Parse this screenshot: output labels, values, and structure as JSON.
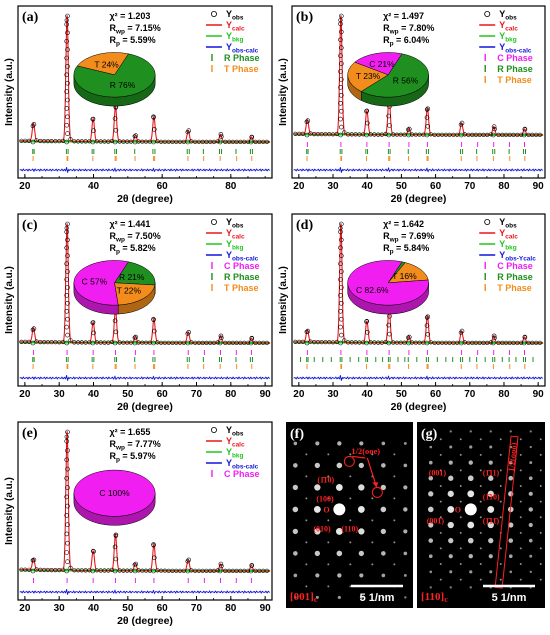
{
  "chart_data": [
    {
      "type": "line",
      "panel_label": "(a)",
      "xlabel": "2θ (degree)",
      "ylabel": "Intensity (a.u.)",
      "xlim": [
        18,
        92
      ],
      "xticks": [
        20,
        40,
        60,
        80
      ],
      "stats": [
        "χ² = 1.203",
        "Rwp = 7.15%",
        "Rp = 5.59%"
      ],
      "legend": [
        "Yobs",
        "Ycalc",
        "Ybkg",
        "Yobs-calc",
        "R Phase",
        "T Phase"
      ],
      "pie": [
        {
          "label": "R 76%",
          "value": 76,
          "color": "#1f8f1f"
        },
        {
          "label": "T 24%",
          "value": 24,
          "color": "#f28c1c"
        }
      ],
      "peaks": [
        {
          "x": 22.5,
          "h": 0.14
        },
        {
          "x": 32.3,
          "h": 1.0
        },
        {
          "x": 39.9,
          "h": 0.18
        },
        {
          "x": 46.4,
          "h": 0.28
        },
        {
          "x": 52.2,
          "h": 0.05
        },
        {
          "x": 57.6,
          "h": 0.2
        },
        {
          "x": 67.6,
          "h": 0.09
        },
        {
          "x": 77.0,
          "h": 0.06
        },
        {
          "x": 86.0,
          "h": 0.04
        }
      ],
      "tick_rows": [
        {
          "color": "#1f8f1f",
          "positions": [
            22.3,
            22.7,
            32.1,
            32.6,
            39.6,
            40.1,
            46.2,
            46.7,
            52.0,
            57.3,
            57.9,
            67.3,
            67.9,
            72.0,
            76.7,
            77.3,
            81.5,
            85.7,
            86.3
          ]
        },
        {
          "color": "#f28c1c",
          "positions": [
            22.4,
            32.3,
            32.5,
            39.8,
            46.3,
            46.6,
            52.1,
            57.5,
            57.8,
            67.5,
            72.1,
            76.9,
            81.7,
            86.1
          ]
        }
      ]
    },
    {
      "type": "line",
      "panel_label": "(b)",
      "xlabel": "2θ (degree)",
      "ylabel": "Intensity (a.u.)",
      "xlim": [
        18,
        92
      ],
      "xticks": [
        20,
        30,
        40,
        50,
        60,
        70,
        80,
        90
      ],
      "stats": [
        "χ² = 1.497",
        "Rwp = 7.80%",
        "Rp = 6.04%"
      ],
      "legend": [
        "Yobs",
        "Ycalc",
        "Ybkg",
        "Yobs-calc",
        "C Phase",
        "R Phase",
        "T Phase"
      ],
      "pie": [
        {
          "label": "R 56%",
          "value": 56,
          "color": "#1f8f1f"
        },
        {
          "label": "T 23%",
          "value": 23,
          "color": "#f28c1c"
        },
        {
          "label": "C 21%",
          "value": 21,
          "color": "#f01ef0"
        }
      ],
      "peaks": [
        {
          "x": 22.5,
          "h": 0.12
        },
        {
          "x": 32.3,
          "h": 1.0
        },
        {
          "x": 39.9,
          "h": 0.2
        },
        {
          "x": 46.4,
          "h": 0.32
        },
        {
          "x": 52.2,
          "h": 0.05
        },
        {
          "x": 57.6,
          "h": 0.22
        },
        {
          "x": 67.6,
          "h": 0.1
        },
        {
          "x": 77.0,
          "h": 0.07
        },
        {
          "x": 86.0,
          "h": 0.05
        }
      ],
      "tick_rows": [
        {
          "color": "#f01ef0",
          "positions": [
            22.5,
            32.3,
            39.9,
            46.4,
            52.2,
            57.6,
            67.6,
            72.3,
            77.0,
            81.6,
            86.0
          ]
        },
        {
          "color": "#1f8f1f",
          "positions": [
            22.3,
            22.7,
            32.1,
            32.6,
            39.6,
            40.1,
            46.2,
            46.7,
            52.0,
            57.3,
            57.9,
            67.3,
            67.9,
            72.0,
            76.7,
            77.3,
            81.5,
            85.7,
            86.3
          ]
        },
        {
          "color": "#f28c1c",
          "positions": [
            22.4,
            32.3,
            32.5,
            39.8,
            46.3,
            46.6,
            52.1,
            57.5,
            57.8,
            67.5,
            72.1,
            76.9,
            81.7,
            86.1
          ]
        }
      ]
    },
    {
      "type": "line",
      "panel_label": "(c)",
      "xlabel": "2θ (degree)",
      "ylabel": "Intensity (a.u.)",
      "xlim": [
        18,
        92
      ],
      "xticks": [
        20,
        30,
        40,
        50,
        60,
        70,
        80,
        90
      ],
      "stats": [
        "χ² = 1.441",
        "Rwp = 7.50%",
        "Rp = 5.82%"
      ],
      "legend": [
        "Yobs",
        "Ycalc",
        "Ybkg",
        "Yobs-calc",
        "C Phase",
        "R Phase",
        "T Phase"
      ],
      "pie": [
        {
          "label": "R 21%",
          "value": 21,
          "color": "#1f8f1f"
        },
        {
          "label": "T 22%",
          "value": 22,
          "color": "#f28c1c"
        },
        {
          "label": "C 57%",
          "value": 57,
          "color": "#f01ef0"
        }
      ],
      "peaks": [
        {
          "x": 22.5,
          "h": 0.12
        },
        {
          "x": 32.3,
          "h": 1.0
        },
        {
          "x": 39.9,
          "h": 0.17
        },
        {
          "x": 46.4,
          "h": 0.28
        },
        {
          "x": 52.2,
          "h": 0.05
        },
        {
          "x": 57.6,
          "h": 0.2
        },
        {
          "x": 67.6,
          "h": 0.09
        },
        {
          "x": 77.0,
          "h": 0.06
        },
        {
          "x": 86.0,
          "h": 0.04
        }
      ],
      "tick_rows": [
        {
          "color": "#f01ef0",
          "positions": [
            22.5,
            32.3,
            39.9,
            46.4,
            52.2,
            57.6,
            67.6,
            72.3,
            77.0,
            81.6,
            86.0
          ]
        },
        {
          "color": "#1f8f1f",
          "positions": [
            22.3,
            22.7,
            32.1,
            32.6,
            39.6,
            40.1,
            46.2,
            46.7,
            52.0,
            57.3,
            57.9,
            67.3,
            67.9,
            72.0,
            76.7,
            77.3,
            81.5,
            85.7,
            86.3
          ]
        },
        {
          "color": "#f28c1c",
          "positions": [
            22.4,
            32.3,
            32.5,
            39.8,
            46.3,
            46.6,
            52.1,
            57.5,
            57.8,
            67.5,
            72.1,
            76.9,
            81.7,
            86.1
          ]
        }
      ]
    },
    {
      "type": "line",
      "panel_label": "(d)",
      "xlabel": "2θ (degree)",
      "ylabel": "Intensity (a.u.)",
      "xlim": [
        18,
        92
      ],
      "xticks": [
        20,
        30,
        40,
        50,
        60,
        70,
        80,
        90
      ],
      "stats": [
        "χ² = 1.642",
        "Rwp = 7.69%",
        "Rp = 5.84%"
      ],
      "legend": [
        "Yobs",
        "Ycalc",
        "Ybkg",
        "Yobs-Ycalc",
        "C Phase",
        "R Phase",
        "T Phase"
      ],
      "pie": [
        {
          "label": "R 1.4%",
          "value": 1.4,
          "color": "#1f8f1f"
        },
        {
          "label": "T 16%",
          "value": 16,
          "color": "#f28c1c"
        },
        {
          "label": "C 82.6%",
          "value": 82.6,
          "color": "#f01ef0"
        }
      ],
      "peaks": [
        {
          "x": 22.5,
          "h": 0.1
        },
        {
          "x": 32.3,
          "h": 1.0
        },
        {
          "x": 39.9,
          "h": 0.18
        },
        {
          "x": 46.4,
          "h": 0.3
        },
        {
          "x": 52.2,
          "h": 0.05
        },
        {
          "x": 57.6,
          "h": 0.22
        },
        {
          "x": 67.6,
          "h": 0.1
        },
        {
          "x": 77.0,
          "h": 0.06
        },
        {
          "x": 86.0,
          "h": 0.05
        }
      ],
      "tick_rows": [
        {
          "color": "#f01ef0",
          "positions": [
            22.5,
            32.3,
            39.9,
            46.4,
            52.2,
            57.6,
            67.6,
            72.3,
            77.0,
            81.6,
            86.0
          ]
        },
        {
          "color": "#1f8f1f",
          "positions": [
            20.5,
            22.3,
            22.7,
            24.5,
            27.0,
            29.5,
            32.1,
            32.6,
            35.0,
            37.5,
            39.6,
            40.1,
            42.5,
            44.5,
            46.2,
            46.7,
            49.0,
            51.0,
            52.0,
            54.5,
            57.3,
            57.9,
            60.5,
            63.0,
            65.0,
            67.3,
            67.9,
            70.0,
            72.0,
            74.5,
            76.7,
            77.3,
            79.5,
            81.5,
            83.5,
            85.7,
            86.3,
            88.5
          ]
        },
        {
          "color": "#f28c1c",
          "positions": [
            22.4,
            32.3,
            32.5,
            39.8,
            46.3,
            46.6,
            52.1,
            57.5,
            57.8,
            67.5,
            72.1,
            76.9,
            81.7,
            86.1
          ]
        }
      ]
    },
    {
      "type": "line",
      "panel_label": "(e)",
      "xlabel": "2θ (degree)",
      "ylabel": "Intensity (a.u.)",
      "xlim": [
        18,
        92
      ],
      "xticks": [
        20,
        30,
        40,
        50,
        60,
        70,
        80,
        90
      ],
      "stats": [
        "χ² = 1.655",
        "Rwp = 7.77%",
        "Rp = 5.97%"
      ],
      "legend": [
        "Yobs",
        "Ycalc",
        "Ybkg",
        "Yobs-calc",
        "C Phase"
      ],
      "pie": [
        {
          "label": "C 100%",
          "value": 100,
          "color": "#f01ef0"
        }
      ],
      "peaks": [
        {
          "x": 22.5,
          "h": 0.08
        },
        {
          "x": 32.3,
          "h": 1.0
        },
        {
          "x": 39.9,
          "h": 0.14
        },
        {
          "x": 46.4,
          "h": 0.26
        },
        {
          "x": 52.2,
          "h": 0.05
        },
        {
          "x": 57.6,
          "h": 0.19
        },
        {
          "x": 67.6,
          "h": 0.08
        },
        {
          "x": 77.0,
          "h": 0.05
        },
        {
          "x": 86.0,
          "h": 0.04
        }
      ],
      "tick_rows": [
        {
          "color": "#f01ef0",
          "positions": [
            22.5,
            32.3,
            39.9,
            46.4,
            52.2,
            57.6,
            67.6,
            72.3,
            77.0,
            81.6,
            86.0
          ]
        }
      ]
    }
  ],
  "saed": [
    {
      "label": "(f)",
      "zone": "[001]c",
      "scale": "5 1/nm",
      "annotation": "1/2(ooe)",
      "spot_labels": [
        {
          "text": "(1̄1̄0)"
        },
        {
          "text": "(100)"
        },
        {
          "text": "O"
        },
        {
          "text": "(010)"
        },
        {
          "text": "(110)"
        }
      ]
    },
    {
      "label": "(g)",
      "zone": "[110]c",
      "scale": "5 1/nm",
      "annotation": "1/2(ooo)",
      "spot_labels": [
        {
          "text": "(001)"
        },
        {
          "text": "(1̄11)"
        },
        {
          "text": "O"
        },
        {
          "text": "(1̄10)"
        },
        {
          "text": "(001̄)"
        },
        {
          "text": "(1̄11̄)"
        }
      ]
    }
  ],
  "colors": {
    "obs": "#000000",
    "calc": "#e8161b",
    "bkg": "#22c41e",
    "diff": "#1414d8",
    "C": "#f01ef0",
    "R": "#1f8f1f",
    "T": "#f28c1c"
  }
}
